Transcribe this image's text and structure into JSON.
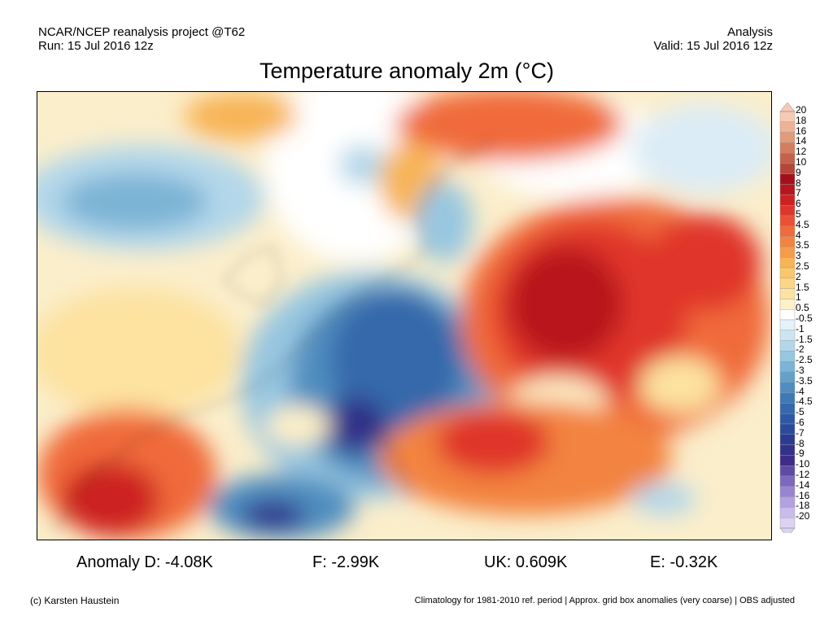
{
  "header": {
    "left_line1": "NCAR/NCEP reanalysis project @T62",
    "left_line2": "Run: 15 Jul 2016 12z",
    "right_line1": "Analysis",
    "right_line2": "Valid: 15 Jul 2016 12z"
  },
  "title": "Temperature anomaly 2m (°C)",
  "colorbar": {
    "levels": [
      "20",
      "18",
      "16",
      "14",
      "12",
      "10",
      "9",
      "8",
      "7",
      "6",
      "5",
      "4.5",
      "4",
      "3.5",
      "3",
      "2.5",
      "2",
      "1.5",
      "1",
      "0.5",
      "-0.5",
      "-1",
      "-1.5",
      "-2",
      "-2.5",
      "-3",
      "-3.5",
      "-4",
      "-4.5",
      "-5",
      "-6",
      "-7",
      "-8",
      "-9",
      "-10",
      "-12",
      "-14",
      "-16",
      "-18",
      "-20"
    ],
    "colors": [
      "#f6cbb4",
      "#eeb296",
      "#e39a7a",
      "#d47e61",
      "#c4614c",
      "#b4473a",
      "#a3101c",
      "#b8161e",
      "#cd2221",
      "#e0352b",
      "#ea5033",
      "#f06a3b",
      "#f3833f",
      "#f59c4a",
      "#f8b457",
      "#fac76c",
      "#fcd685",
      "#fde2a0",
      "#fef0c8",
      "#ffffff",
      "#e6f1f8",
      "#cde5f2",
      "#b3d7ea",
      "#97c6e0",
      "#7cb4d5",
      "#63a1cb",
      "#4f8ec0",
      "#3f7ab5",
      "#3669ab",
      "#2f59a3",
      "#2b4a9b",
      "#2c3b91",
      "#33318a",
      "#3e2d88",
      "#5f4aa6",
      "#7e67be",
      "#9984d1",
      "#b3a1e0",
      "#c9bceb",
      "#dcd3f3"
    ]
  },
  "stats": [
    {
      "label": "Anomaly D: -4.08K"
    },
    {
      "label": "F: -2.99K"
    },
    {
      "label": "UK: 0.609K"
    },
    {
      "label": "E: -0.32K"
    }
  ],
  "footer": {
    "credit": "(c) Karsten Haustein",
    "note": "Climatology for 1981-2010 ref. period | Approx. grid box anomalies (very coarse) | OBS adjusted"
  }
}
